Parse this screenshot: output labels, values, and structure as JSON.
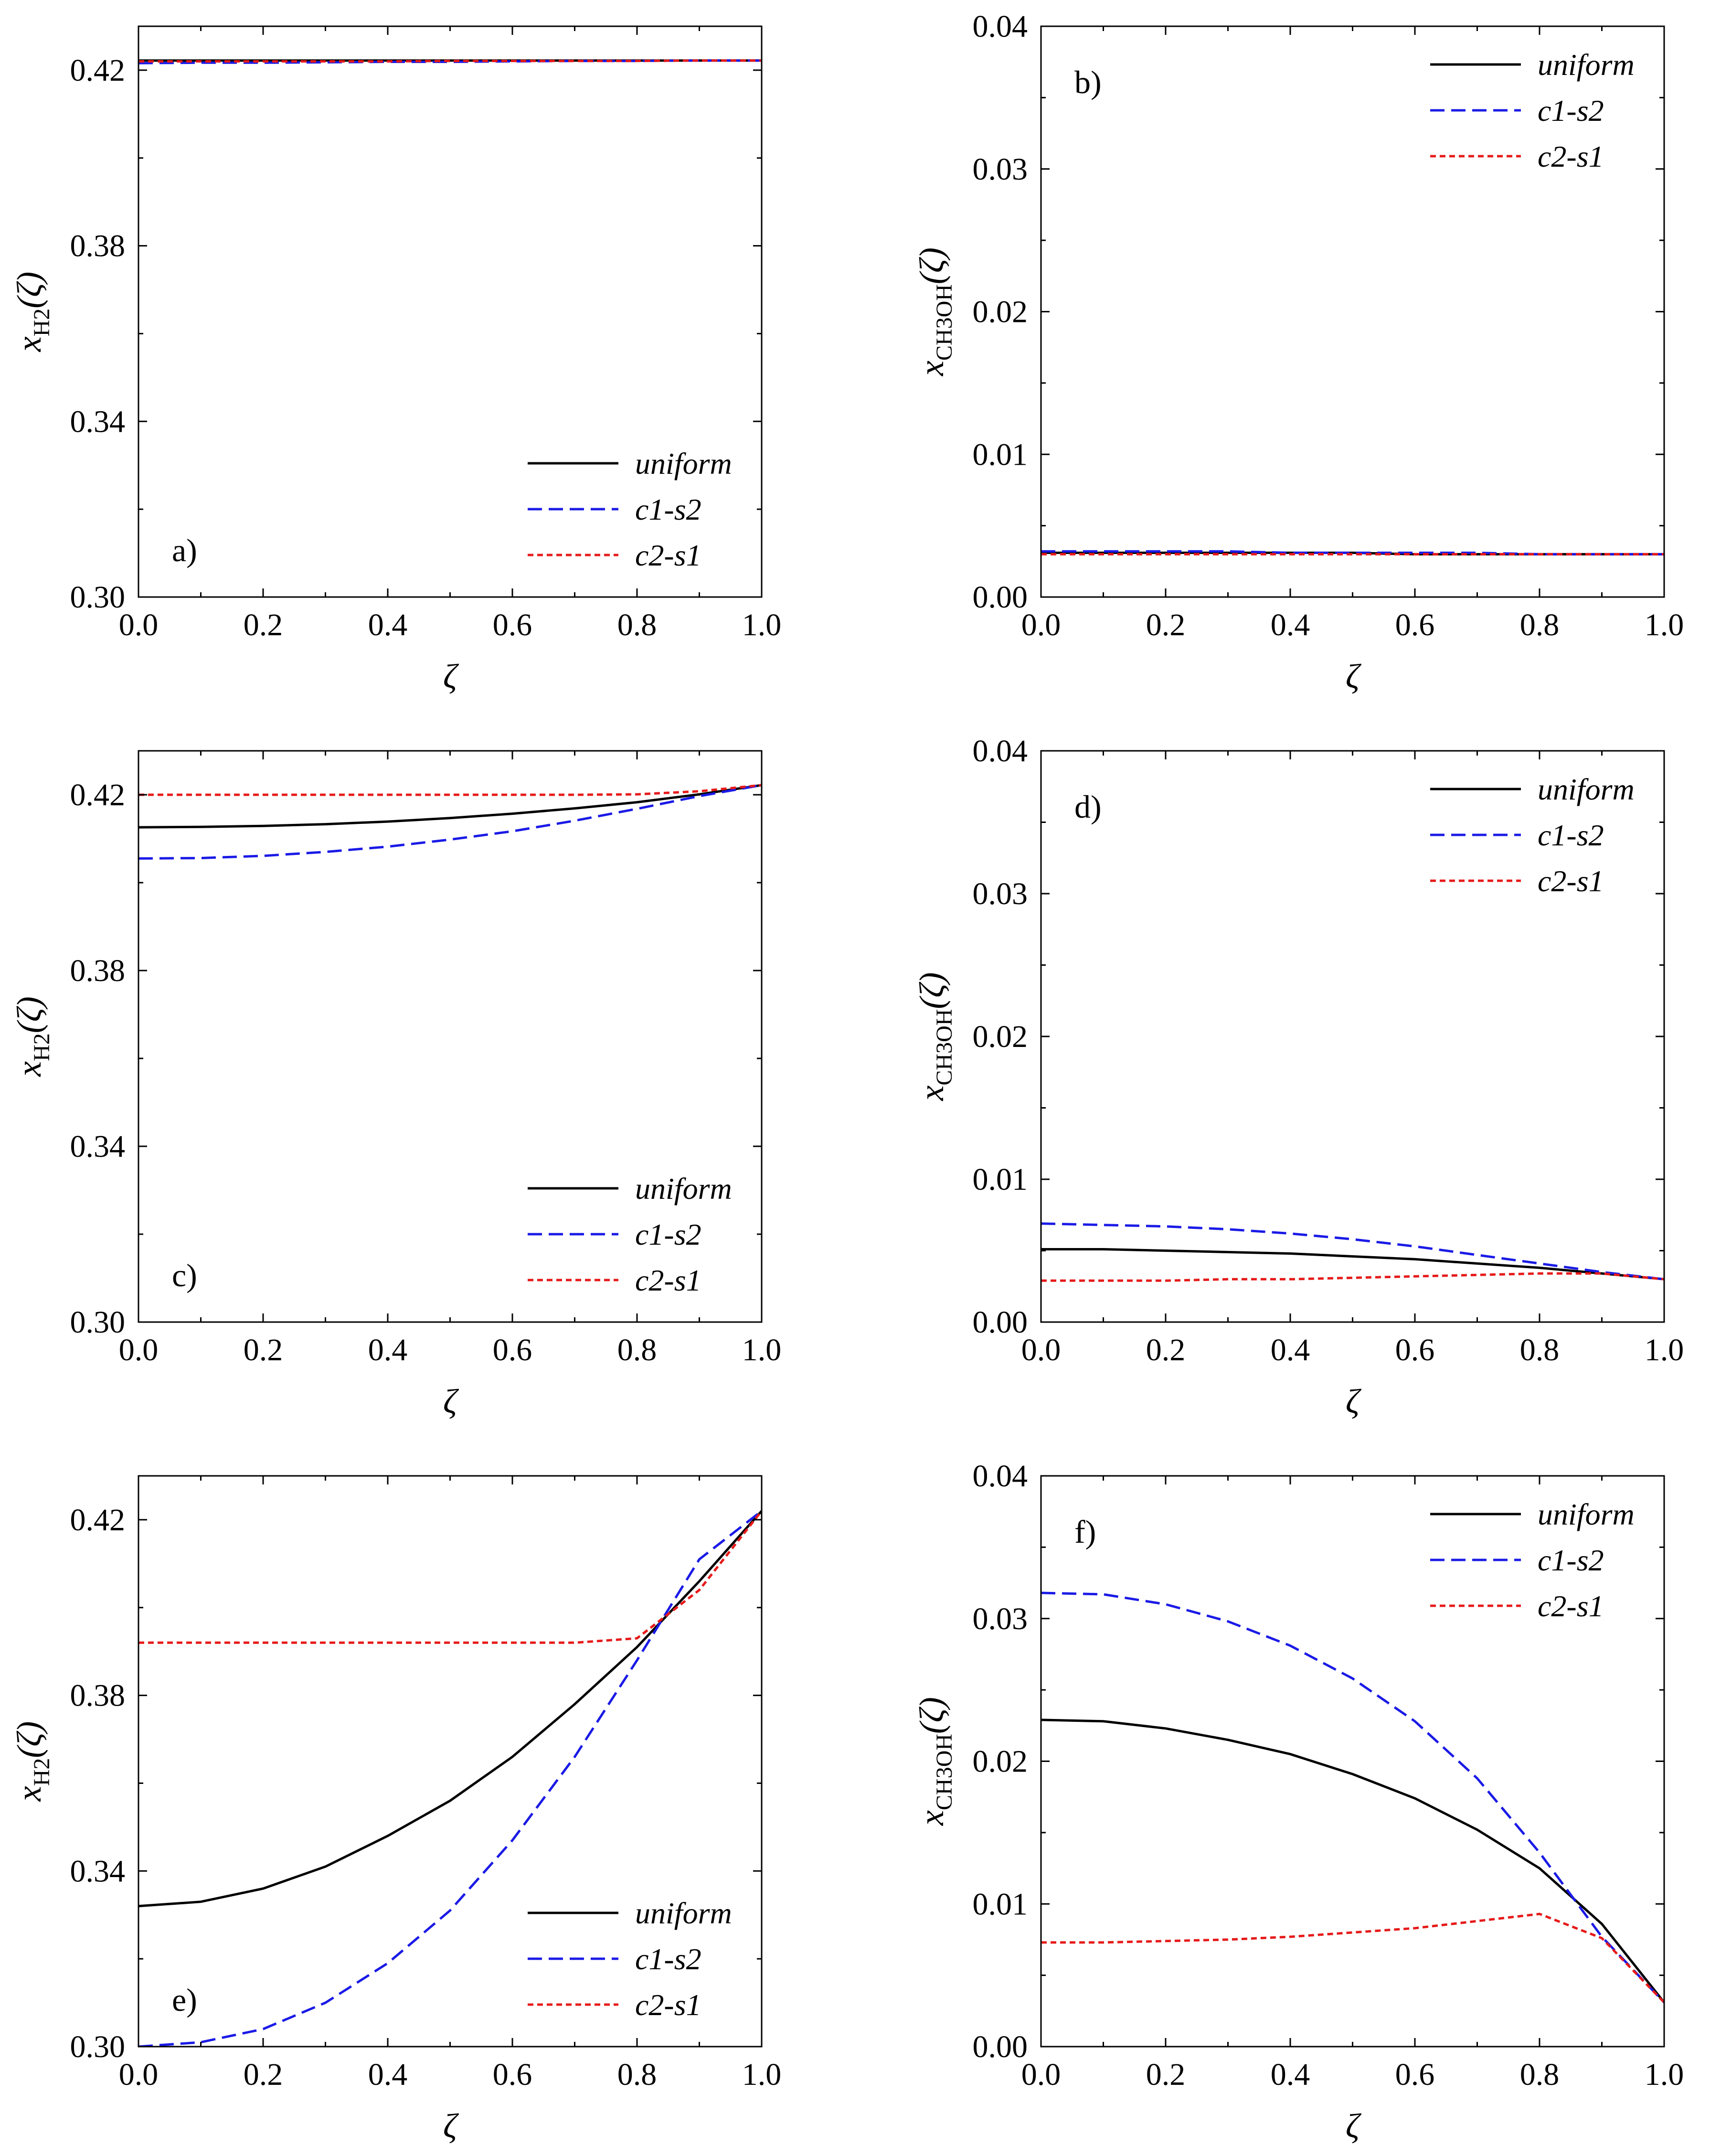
{
  "figure": {
    "legend_entries": [
      "uniform",
      "c1-s2",
      "c2-s1"
    ],
    "colors": {
      "uniform": "#000000",
      "c1-s2": "#1a1ae6",
      "c2-s1": "#e61a1a"
    }
  },
  "chart_data": [
    {
      "type": "line",
      "panel_label": "a)",
      "xlabel": "ζ",
      "ylabel_var": "x",
      "ylabel_sub": "H2",
      "ylabel_arg": "(ζ)",
      "xlim": [
        0,
        1
      ],
      "ylim": [
        0.3,
        0.43
      ],
      "xticks": [
        "0.0",
        "0.2",
        "0.4",
        "0.6",
        "0.8",
        "1.0"
      ],
      "yticks": [
        "0.30",
        "0.34",
        "0.38",
        "0.42"
      ],
      "legend_position": "bottom-right",
      "x": [
        0,
        0.1,
        0.2,
        0.3,
        0.4,
        0.5,
        0.6,
        0.7,
        0.8,
        0.9,
        1.0
      ],
      "series": [
        {
          "name": "uniform",
          "values": [
            0.4222,
            0.4222,
            0.4222,
            0.4222,
            0.4222,
            0.4222,
            0.4222,
            0.4222,
            0.4222,
            0.4222,
            0.4222
          ]
        },
        {
          "name": "c1-s2",
          "values": [
            0.4216,
            0.4217,
            0.4217,
            0.4218,
            0.4219,
            0.4219,
            0.422,
            0.4221,
            0.4221,
            0.4222,
            0.4222
          ]
        },
        {
          "name": "c2-s1",
          "values": [
            0.422,
            0.422,
            0.422,
            0.422,
            0.422,
            0.4221,
            0.4221,
            0.4221,
            0.4221,
            0.4222,
            0.4222
          ]
        }
      ]
    },
    {
      "type": "line",
      "panel_label": "b)",
      "xlabel": "ζ",
      "ylabel_var": "x",
      "ylabel_sub": "CH3OH",
      "ylabel_arg": "(ζ)",
      "xlim": [
        0,
        1
      ],
      "ylim": [
        0.0,
        0.04
      ],
      "xticks": [
        "0.0",
        "0.2",
        "0.4",
        "0.6",
        "0.8",
        "1.0"
      ],
      "yticks": [
        "0.00",
        "0.01",
        "0.02",
        "0.03",
        "0.04"
      ],
      "legend_position": "top-right",
      "x": [
        0,
        0.1,
        0.2,
        0.3,
        0.4,
        0.5,
        0.6,
        0.7,
        0.8,
        0.9,
        1.0
      ],
      "series": [
        {
          "name": "uniform",
          "values": [
            0.0031,
            0.0031,
            0.0031,
            0.0031,
            0.0031,
            0.0031,
            0.003,
            0.003,
            0.003,
            0.003,
            0.003
          ]
        },
        {
          "name": "c1-s2",
          "values": [
            0.0032,
            0.0032,
            0.0032,
            0.0032,
            0.0031,
            0.0031,
            0.0031,
            0.0031,
            0.003,
            0.003,
            0.003
          ]
        },
        {
          "name": "c2-s1",
          "values": [
            0.003,
            0.003,
            0.003,
            0.003,
            0.003,
            0.003,
            0.003,
            0.003,
            0.003,
            0.003,
            0.003
          ]
        }
      ]
    },
    {
      "type": "line",
      "panel_label": "c)",
      "xlabel": "ζ",
      "ylabel_var": "x",
      "ylabel_sub": "H2",
      "ylabel_arg": "(ζ)",
      "xlim": [
        0,
        1
      ],
      "ylim": [
        0.3,
        0.43
      ],
      "xticks": [
        "0.0",
        "0.2",
        "0.4",
        "0.6",
        "0.8",
        "1.0"
      ],
      "yticks": [
        "0.30",
        "0.34",
        "0.38",
        "0.42"
      ],
      "legend_position": "bottom-right",
      "x": [
        0,
        0.1,
        0.2,
        0.3,
        0.4,
        0.5,
        0.6,
        0.7,
        0.8,
        0.9,
        1.0
      ],
      "series": [
        {
          "name": "uniform",
          "values": [
            0.4126,
            0.4127,
            0.4129,
            0.4133,
            0.4139,
            0.4147,
            0.4157,
            0.4169,
            0.4183,
            0.4201,
            0.4222
          ]
        },
        {
          "name": "c1-s2",
          "values": [
            0.4055,
            0.4056,
            0.4061,
            0.407,
            0.4082,
            0.4098,
            0.4117,
            0.4141,
            0.4168,
            0.4197,
            0.4222
          ]
        },
        {
          "name": "c2-s1",
          "values": [
            0.42,
            0.42,
            0.42,
            0.42,
            0.42,
            0.42,
            0.42,
            0.42,
            0.4201,
            0.4208,
            0.4222
          ]
        }
      ]
    },
    {
      "type": "line",
      "panel_label": "d)",
      "xlabel": "ζ",
      "ylabel_var": "x",
      "ylabel_sub": "CH3OH",
      "ylabel_arg": "(ζ)",
      "xlim": [
        0,
        1
      ],
      "ylim": [
        0.0,
        0.04
      ],
      "xticks": [
        "0.0",
        "0.2",
        "0.4",
        "0.6",
        "0.8",
        "1.0"
      ],
      "yticks": [
        "0.00",
        "0.01",
        "0.02",
        "0.03",
        "0.04"
      ],
      "legend_position": "top-right",
      "x": [
        0,
        0.1,
        0.2,
        0.3,
        0.4,
        0.5,
        0.6,
        0.7,
        0.8,
        0.9,
        1.0
      ],
      "series": [
        {
          "name": "uniform",
          "values": [
            0.0051,
            0.0051,
            0.005,
            0.0049,
            0.0048,
            0.0046,
            0.0044,
            0.0041,
            0.0038,
            0.0034,
            0.003
          ]
        },
        {
          "name": "c1-s2",
          "values": [
            0.0069,
            0.0068,
            0.0067,
            0.0065,
            0.0062,
            0.0058,
            0.0053,
            0.0047,
            0.0041,
            0.0035,
            0.003
          ]
        },
        {
          "name": "c2-s1",
          "values": [
            0.0029,
            0.0029,
            0.0029,
            0.003,
            0.003,
            0.0031,
            0.0032,
            0.0033,
            0.0034,
            0.0034,
            0.003
          ]
        }
      ]
    },
    {
      "type": "line",
      "panel_label": "e)",
      "xlabel": "ζ",
      "ylabel_var": "x",
      "ylabel_sub": "H2",
      "ylabel_arg": "(ζ)",
      "xlim": [
        0,
        1
      ],
      "ylim": [
        0.3,
        0.43
      ],
      "xticks": [
        "0.0",
        "0.2",
        "0.4",
        "0.6",
        "0.8",
        "1.0"
      ],
      "yticks": [
        "0.30",
        "0.34",
        "0.38",
        "0.42"
      ],
      "legend_position": "bottom-right",
      "x": [
        0,
        0.1,
        0.2,
        0.3,
        0.4,
        0.5,
        0.6,
        0.7,
        0.8,
        0.9,
        1.0
      ],
      "series": [
        {
          "name": "uniform",
          "values": [
            0.332,
            0.333,
            0.336,
            0.341,
            0.348,
            0.356,
            0.366,
            0.378,
            0.391,
            0.406,
            0.422
          ]
        },
        {
          "name": "c1-s2",
          "values": [
            0.3,
            0.301,
            0.304,
            0.31,
            0.319,
            0.331,
            0.347,
            0.366,
            0.388,
            0.411,
            0.422
          ]
        },
        {
          "name": "c2-s1",
          "values": [
            0.392,
            0.392,
            0.392,
            0.392,
            0.392,
            0.392,
            0.392,
            0.392,
            0.393,
            0.404,
            0.422
          ]
        }
      ]
    },
    {
      "type": "line",
      "panel_label": "f)",
      "xlabel": "ζ",
      "ylabel_var": "x",
      "ylabel_sub": "CH3OH",
      "ylabel_arg": "(ζ)",
      "xlim": [
        0,
        1
      ],
      "ylim": [
        0.0,
        0.04
      ],
      "xticks": [
        "0.0",
        "0.2",
        "0.4",
        "0.6",
        "0.8",
        "1.0"
      ],
      "yticks": [
        "0.00",
        "0.01",
        "0.02",
        "0.03",
        "0.04"
      ],
      "legend_position": "top-right",
      "x": [
        0,
        0.1,
        0.2,
        0.3,
        0.4,
        0.5,
        0.6,
        0.7,
        0.8,
        0.9,
        1.0
      ],
      "series": [
        {
          "name": "uniform",
          "values": [
            0.0229,
            0.0228,
            0.0223,
            0.0215,
            0.0205,
            0.0191,
            0.0174,
            0.0152,
            0.0125,
            0.0086,
            0.0031
          ]
        },
        {
          "name": "c1-s2",
          "values": [
            0.0318,
            0.0317,
            0.031,
            0.0298,
            0.0281,
            0.0258,
            0.0228,
            0.0188,
            0.0136,
            0.0077,
            0.0031
          ]
        },
        {
          "name": "c2-s1",
          "values": [
            0.0073,
            0.0073,
            0.0074,
            0.0075,
            0.0077,
            0.008,
            0.0083,
            0.0088,
            0.0093,
            0.0076,
            0.0031
          ]
        }
      ]
    }
  ]
}
